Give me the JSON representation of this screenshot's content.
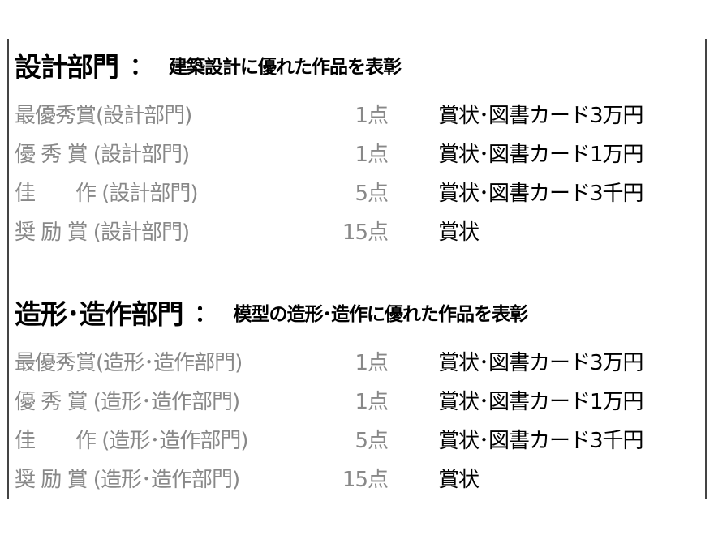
{
  "sections": [
    {
      "title": "設計部門",
      "colon": "：",
      "subtitle": "建築設計に優れた作品を表彰",
      "rows": [
        {
          "label": "最優秀賞(設計部門)",
          "count": "1点",
          "prize": "賞状･図書カード3万円"
        },
        {
          "label": "優 秀 賞 (設計部門)",
          "count": "1点",
          "prize": "賞状･図書カード1万円"
        },
        {
          "label": "佳　　作 (設計部門)",
          "count": "5点",
          "prize": "賞状･図書カード3千円"
        },
        {
          "label": "奨 励 賞 (設計部門)",
          "count": "15点",
          "prize": "賞状"
        }
      ]
    },
    {
      "title": "造形･造作部門",
      "colon": "：",
      "subtitle": "模型の造形･造作に優れた作品を表彰",
      "rows": [
        {
          "label": "最優秀賞(造形･造作部門)",
          "count": "1点",
          "prize": "賞状･図書カード3万円"
        },
        {
          "label": "優 秀 賞 (造形･造作部門)",
          "count": "1点",
          "prize": "賞状･図書カード1万円"
        },
        {
          "label": "佳　　作 (造形･造作部門)",
          "count": "5点",
          "prize": "賞状･図書カード3千円"
        },
        {
          "label": "奨 励 賞 (造形･造作部門)",
          "count": "15点",
          "prize": "賞状"
        }
      ]
    }
  ]
}
